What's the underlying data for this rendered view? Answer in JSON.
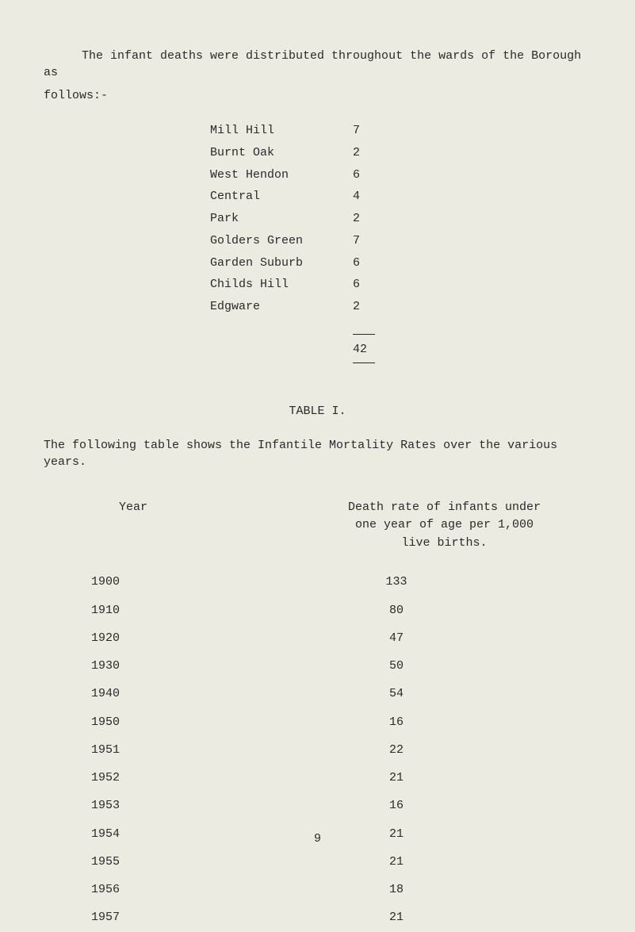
{
  "intro": {
    "line1": "The infant deaths were distributed throughout the wards of the Borough as",
    "line2": "follows:-"
  },
  "wards": [
    {
      "name": "Mill Hill",
      "value": "7"
    },
    {
      "name": "Burnt Oak",
      "value": "2"
    },
    {
      "name": "West Hendon",
      "value": "6"
    },
    {
      "name": "Central",
      "value": "4"
    },
    {
      "name": "Park",
      "value": "2"
    },
    {
      "name": "Golders Green",
      "value": "7"
    },
    {
      "name": "Garden Suburb",
      "value": "6"
    },
    {
      "name": "Childs Hill",
      "value": "6"
    },
    {
      "name": "Edgware",
      "value": "2"
    }
  ],
  "wards_total": "42",
  "table_heading": "TABLE I.",
  "table_subtext": "The following table shows the Infantile Mortality Rates over the various years.",
  "headers": {
    "year": "Year",
    "rate_line1": "Death rate of infants under",
    "rate_line2": "one year of age per 1,000",
    "rate_line3": "live births."
  },
  "mortality_data": [
    {
      "year": "1900",
      "rate": "133"
    },
    {
      "year": "1910",
      "rate": "80"
    },
    {
      "year": "1920",
      "rate": "47"
    },
    {
      "year": "1930",
      "rate": "50"
    },
    {
      "year": "1940",
      "rate": "54"
    },
    {
      "year": "1950",
      "rate": "16"
    },
    {
      "year": "1951",
      "rate": "22"
    },
    {
      "year": "1952",
      "rate": "21"
    },
    {
      "year": "1953",
      "rate": "16"
    },
    {
      "year": "1954",
      "rate": "21"
    },
    {
      "year": "1955",
      "rate": "21"
    },
    {
      "year": "1956",
      "rate": "18"
    },
    {
      "year": "1957",
      "rate": "21"
    }
  ],
  "page_number": "9",
  "colors": {
    "background": "#ecebe1",
    "text": "#2a2a2a"
  },
  "typography": {
    "font_family": "Courier New",
    "font_size_pt": 11
  }
}
